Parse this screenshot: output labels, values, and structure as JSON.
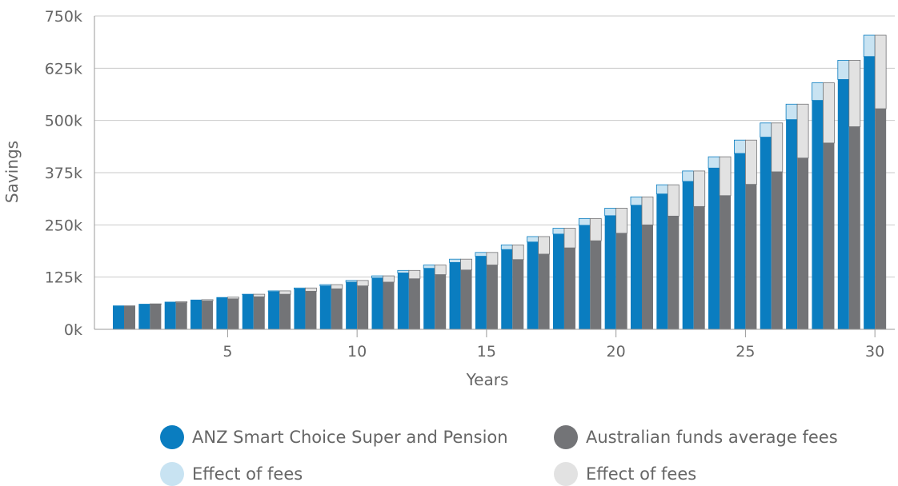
{
  "chart_data": {
    "type": "bar",
    "xlabel": "Years",
    "ylabel": "Savings",
    "x_ticks": [
      "5",
      "10",
      "15",
      "20",
      "25",
      "30"
    ],
    "y_ticks": [
      "0k",
      "125k",
      "250k",
      "375k",
      "500k",
      "625k",
      "750k"
    ],
    "ylim": [
      0,
      750000
    ],
    "grid": true,
    "stacked": true,
    "categories": [
      "1",
      "2",
      "3",
      "4",
      "5",
      "6",
      "7",
      "8",
      "9",
      "10",
      "11",
      "12",
      "13",
      "14",
      "15",
      "16",
      "17",
      "18",
      "19",
      "20",
      "21",
      "22",
      "23",
      "24",
      "25",
      "26",
      "27",
      "28",
      "29",
      "30"
    ],
    "groups": [
      {
        "name": "ANZ Smart Choice Super and Pension",
        "color": "#0a7dc0",
        "fee_color": "#c8e3f2",
        "values": [
          57000,
          61000,
          66000,
          71000,
          77000,
          83000,
          90000,
          97000,
          104000,
          113000,
          123000,
          135000,
          146000,
          160000,
          175000,
          191000,
          209000,
          228000,
          249000,
          272000,
          297000,
          324000,
          354000,
          386000,
          421000,
          460000,
          502000,
          548000,
          598000,
          653000
        ],
        "totals": [
          57000,
          61000,
          66000,
          71000,
          77000,
          84000,
          92000,
          99000,
          107000,
          117000,
          128000,
          141000,
          154000,
          168000,
          184000,
          202000,
          222000,
          242000,
          265000,
          290000,
          317000,
          346000,
          379000,
          413000,
          453000,
          494000,
          539000,
          590000,
          644000,
          704000
        ]
      },
      {
        "name": "Australian funds average fees",
        "color": "#737477",
        "fee_color": "#e2e2e2",
        "values": [
          57000,
          60000,
          64000,
          68000,
          73000,
          78000,
          84000,
          91000,
          97000,
          104000,
          113000,
          121000,
          131000,
          142000,
          154000,
          167000,
          180000,
          195000,
          212000,
          230000,
          250000,
          271000,
          294000,
          320000,
          347000,
          377000,
          410000,
          446000,
          485000,
          528000
        ],
        "totals": [
          57000,
          61000,
          66000,
          71000,
          77000,
          84000,
          92000,
          99000,
          107000,
          117000,
          128000,
          141000,
          154000,
          168000,
          184000,
          202000,
          222000,
          242000,
          265000,
          290000,
          317000,
          346000,
          379000,
          413000,
          453000,
          494000,
          539000,
          590000,
          644000,
          704000
        ]
      }
    ],
    "legend": [
      {
        "label": "ANZ Smart Choice Super and Pension",
        "color": "#0a7dc0"
      },
      {
        "label": "Australian funds average fees",
        "color": "#737477"
      },
      {
        "label": "Effect of fees",
        "color": "#c8e3f2"
      },
      {
        "label": "Effect of fees",
        "color": "#e2e2e2"
      }
    ],
    "legend_position": "bottom"
  }
}
